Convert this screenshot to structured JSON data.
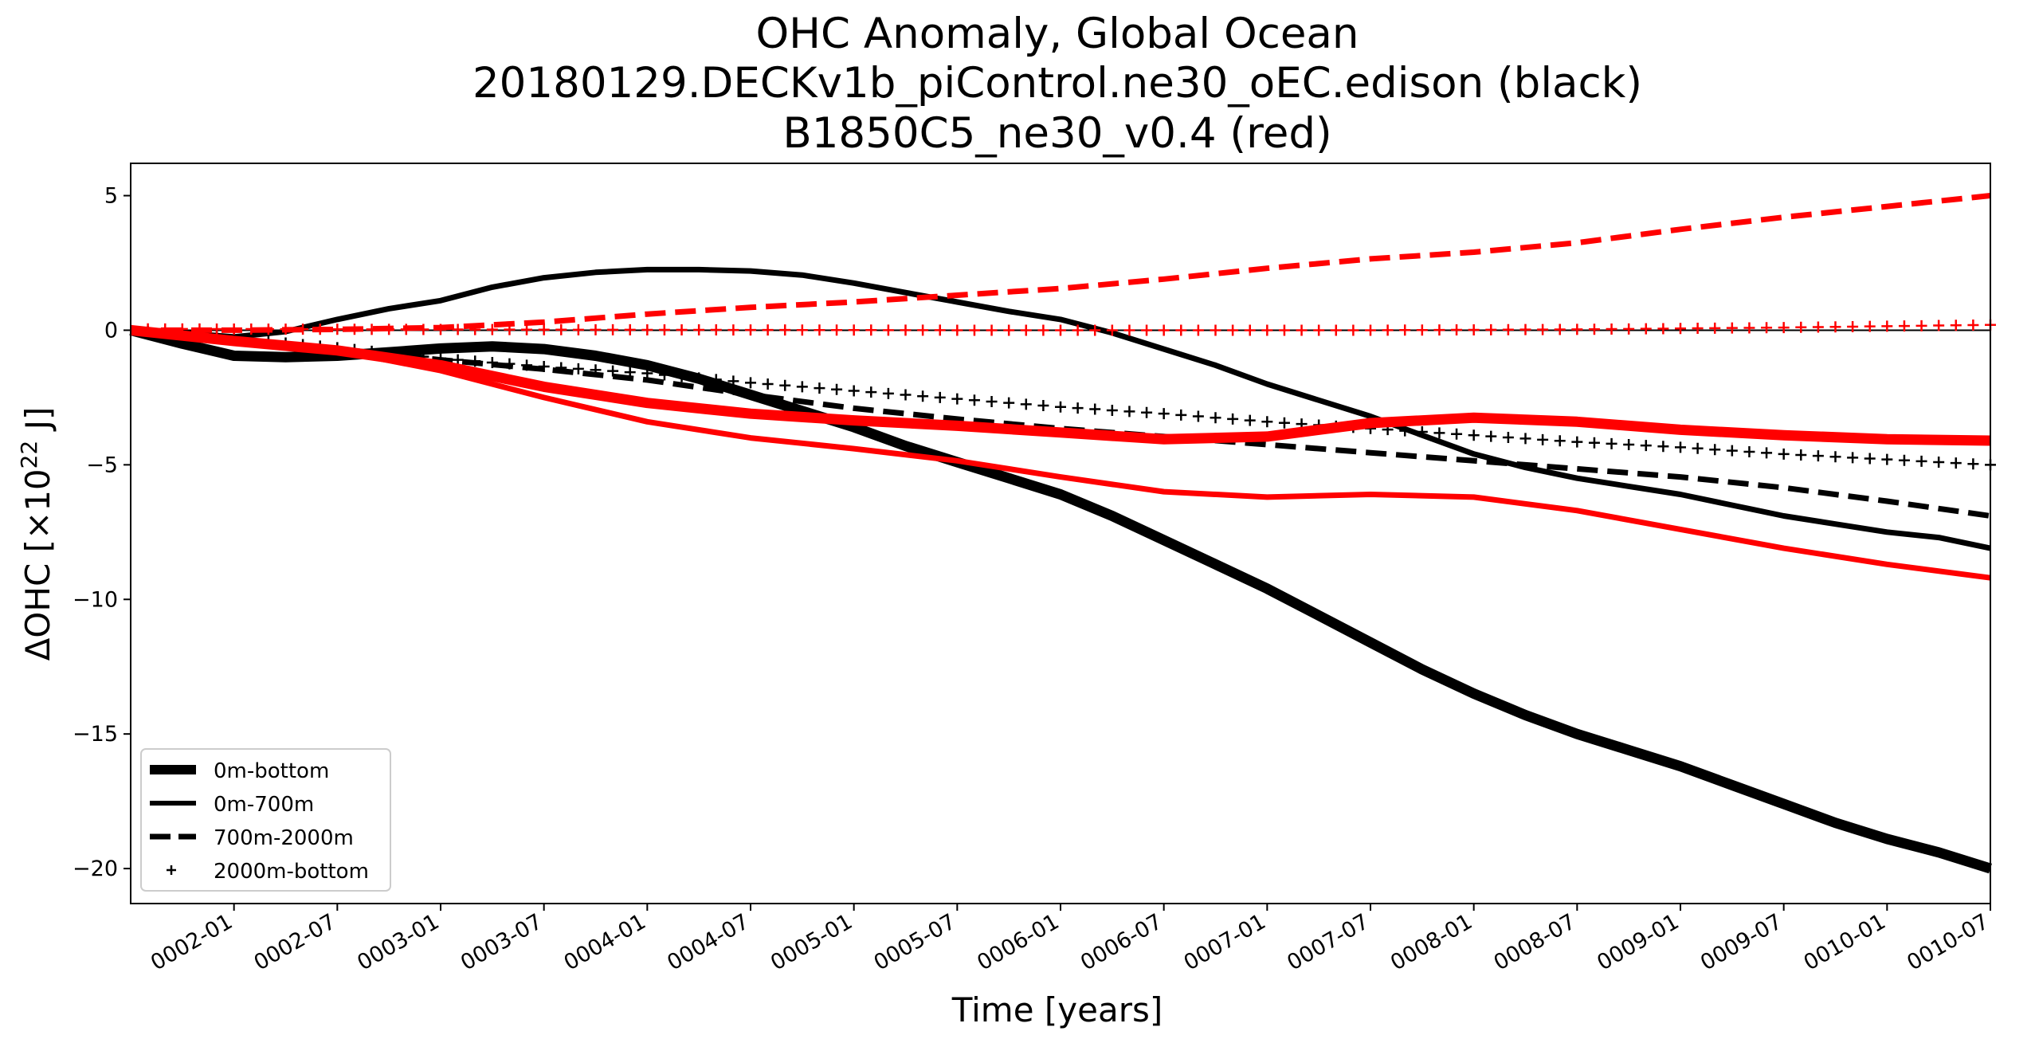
{
  "chart_data": {
    "type": "line",
    "title": [
      "OHC Anomaly, Global Ocean",
      "20180129.DECKv1b_piControl.ne30_oEC.edison (black)",
      "B1850C5_ne30_v0.4 (red)"
    ],
    "xlabel": "Time [years]",
    "ylabel_main": "ΔOHC [×10",
    "ylabel_sup": "22",
    "ylabel_tail": " J]",
    "x_ticks": [
      "0002-01",
      "0002-07",
      "0003-01",
      "0003-07",
      "0004-01",
      "0004-07",
      "0005-01",
      "0005-07",
      "0006-01",
      "0006-07",
      "0007-01",
      "0007-07",
      "0008-01",
      "0008-07",
      "0009-01",
      "0009-07",
      "0010-01",
      "0010-07"
    ],
    "xlim": [
      "0001-07",
      "0010-07"
    ],
    "y_ticks": [
      5,
      0,
      -5,
      -10,
      -15,
      -20
    ],
    "y_tick_labels": [
      "5",
      "0",
      "−5",
      "−10",
      "−15",
      "−20"
    ],
    "ylim": [
      -21.3,
      6.2
    ],
    "zero_line": 0,
    "colors": {
      "black_run": "#000000",
      "red_run": "#ff0000"
    },
    "legend": {
      "position": "lower-left",
      "entries": [
        {
          "label": "0m-bottom",
          "style": "thick-solid"
        },
        {
          "label": "0m-700m",
          "style": "solid"
        },
        {
          "label": "700m-2000m",
          "style": "dashed"
        },
        {
          "label": "2000m-bottom",
          "style": "plus-markers"
        }
      ]
    },
    "series": [
      {
        "color": "#000000",
        "style": "thick-solid",
        "points": [
          [
            "0001-07",
            0
          ],
          [
            "0001-10",
            -0.5
          ],
          [
            "0002-01",
            -0.95
          ],
          [
            "0002-04",
            -1.0
          ],
          [
            "0002-07",
            -0.95
          ],
          [
            "0002-10",
            -0.82
          ],
          [
            "0003-01",
            -0.68
          ],
          [
            "0003-04",
            -0.6
          ],
          [
            "0003-07",
            -0.7
          ],
          [
            "0003-10",
            -0.95
          ],
          [
            "0004-01",
            -1.3
          ],
          [
            "0004-04",
            -1.8
          ],
          [
            "0004-07",
            -2.4
          ],
          [
            "0004-10",
            -3.0
          ],
          [
            "0005-01",
            -3.6
          ],
          [
            "0005-04",
            -4.3
          ],
          [
            "0005-07",
            -4.9
          ],
          [
            "0005-10",
            -5.5
          ],
          [
            "0006-01",
            -6.1
          ],
          [
            "0006-04",
            -6.9
          ],
          [
            "0006-07",
            -7.8
          ],
          [
            "0006-10",
            -8.7
          ],
          [
            "0007-01",
            -9.6
          ],
          [
            "0007-04",
            -10.6
          ],
          [
            "0007-07",
            -11.6
          ],
          [
            "0007-10",
            -12.6
          ],
          [
            "0008-01",
            -13.5
          ],
          [
            "0008-04",
            -14.3
          ],
          [
            "0008-07",
            -15.0
          ],
          [
            "0008-10",
            -15.6
          ],
          [
            "0009-01",
            -16.2
          ],
          [
            "0009-04",
            -16.9
          ],
          [
            "0009-07",
            -17.6
          ],
          [
            "0009-10",
            -18.3
          ],
          [
            "0010-01",
            -18.9
          ],
          [
            "0010-04",
            -19.4
          ],
          [
            "0010-07",
            -20.0
          ]
        ]
      },
      {
        "color": "#000000",
        "style": "solid",
        "points": [
          [
            "0001-07",
            0
          ],
          [
            "0001-10",
            -0.1
          ],
          [
            "0002-01",
            -0.25
          ],
          [
            "0002-04",
            -0.05
          ],
          [
            "0002-07",
            0.4
          ],
          [
            "0002-10",
            0.8
          ],
          [
            "0003-01",
            1.1
          ],
          [
            "0003-04",
            1.6
          ],
          [
            "0003-07",
            1.95
          ],
          [
            "0003-10",
            2.15
          ],
          [
            "0004-01",
            2.25
          ],
          [
            "0004-04",
            2.25
          ],
          [
            "0004-07",
            2.2
          ],
          [
            "0004-10",
            2.05
          ],
          [
            "0005-01",
            1.75
          ],
          [
            "0005-04",
            1.4
          ],
          [
            "0005-07",
            1.05
          ],
          [
            "0005-10",
            0.7
          ],
          [
            "0006-01",
            0.4
          ],
          [
            "0006-04",
            -0.1
          ],
          [
            "0006-07",
            -0.7
          ],
          [
            "0006-10",
            -1.3
          ],
          [
            "0007-01",
            -2.0
          ],
          [
            "0007-04",
            -2.6
          ],
          [
            "0007-07",
            -3.2
          ],
          [
            "0007-10",
            -3.9
          ],
          [
            "0008-01",
            -4.6
          ],
          [
            "0008-04",
            -5.1
          ],
          [
            "0008-07",
            -5.5
          ],
          [
            "0008-10",
            -5.8
          ],
          [
            "0009-01",
            -6.1
          ],
          [
            "0009-04",
            -6.5
          ],
          [
            "0009-07",
            -6.9
          ],
          [
            "0009-10",
            -7.2
          ],
          [
            "0010-01",
            -7.5
          ],
          [
            "0010-04",
            -7.7
          ],
          [
            "0010-07",
            -8.1
          ]
        ]
      },
      {
        "color": "#000000",
        "style": "dashed",
        "points": [
          [
            "0001-07",
            0
          ],
          [
            "0002-01",
            -0.35
          ],
          [
            "0002-07",
            -0.7
          ],
          [
            "0003-01",
            -1.1
          ],
          [
            "0003-07",
            -1.45
          ],
          [
            "0004-01",
            -1.85
          ],
          [
            "0004-07",
            -2.4
          ],
          [
            "0005-01",
            -2.9
          ],
          [
            "0005-07",
            -3.3
          ],
          [
            "0006-01",
            -3.65
          ],
          [
            "0006-07",
            -3.95
          ],
          [
            "0007-01",
            -4.25
          ],
          [
            "0007-07",
            -4.55
          ],
          [
            "0008-01",
            -4.85
          ],
          [
            "0008-07",
            -5.15
          ],
          [
            "0009-01",
            -5.45
          ],
          [
            "0009-07",
            -5.85
          ],
          [
            "0010-01",
            -6.35
          ],
          [
            "0010-07",
            -6.9
          ]
        ]
      },
      {
        "color": "#000000",
        "style": "plus-markers",
        "points": [
          [
            "0001-07",
            0
          ],
          [
            "0002-01",
            -0.3
          ],
          [
            "0002-07",
            -0.65
          ],
          [
            "0003-01",
            -1.05
          ],
          [
            "0003-07",
            -1.35
          ],
          [
            "0004-01",
            -1.6
          ],
          [
            "0004-07",
            -1.95
          ],
          [
            "0005-01",
            -2.25
          ],
          [
            "0005-07",
            -2.55
          ],
          [
            "0006-01",
            -2.85
          ],
          [
            "0006-07",
            -3.1
          ],
          [
            "0007-01",
            -3.4
          ],
          [
            "0007-07",
            -3.65
          ],
          [
            "0008-01",
            -3.9
          ],
          [
            "0008-07",
            -4.15
          ],
          [
            "0009-01",
            -4.35
          ],
          [
            "0009-07",
            -4.6
          ],
          [
            "0010-01",
            -4.8
          ],
          [
            "0010-07",
            -5.0
          ]
        ]
      },
      {
        "color": "#ff0000",
        "style": "thick-solid",
        "points": [
          [
            "0001-07",
            0
          ],
          [
            "0002-01",
            -0.4
          ],
          [
            "0002-07",
            -0.75
          ],
          [
            "0003-01",
            -1.3
          ],
          [
            "0003-07",
            -2.1
          ],
          [
            "0004-01",
            -2.7
          ],
          [
            "0004-07",
            -3.1
          ],
          [
            "0005-01",
            -3.35
          ],
          [
            "0005-07",
            -3.55
          ],
          [
            "0006-01",
            -3.8
          ],
          [
            "0006-07",
            -4.05
          ],
          [
            "0007-01",
            -3.95
          ],
          [
            "0007-07",
            -3.45
          ],
          [
            "0008-01",
            -3.25
          ],
          [
            "0008-07",
            -3.4
          ],
          [
            "0009-01",
            -3.7
          ],
          [
            "0009-07",
            -3.9
          ],
          [
            "0010-01",
            -4.05
          ],
          [
            "0010-07",
            -4.1
          ]
        ]
      },
      {
        "color": "#ff0000",
        "style": "solid",
        "points": [
          [
            "0001-07",
            0
          ],
          [
            "0002-01",
            -0.4
          ],
          [
            "0002-07",
            -0.75
          ],
          [
            "0003-01",
            -1.5
          ],
          [
            "0003-07",
            -2.5
          ],
          [
            "0004-01",
            -3.4
          ],
          [
            "0004-07",
            -4.0
          ],
          [
            "0005-01",
            -4.4
          ],
          [
            "0005-07",
            -4.85
          ],
          [
            "0006-01",
            -5.45
          ],
          [
            "0006-07",
            -6.0
          ],
          [
            "0007-01",
            -6.2
          ],
          [
            "0007-07",
            -6.1
          ],
          [
            "0008-01",
            -6.2
          ],
          [
            "0008-07",
            -6.7
          ],
          [
            "0009-01",
            -7.4
          ],
          [
            "0009-07",
            -8.1
          ],
          [
            "0010-01",
            -8.7
          ],
          [
            "0010-07",
            -9.2
          ]
        ]
      },
      {
        "color": "#ff0000",
        "style": "dashed",
        "points": [
          [
            "0001-07",
            0
          ],
          [
            "0002-01",
            0.0
          ],
          [
            "0002-07",
            0.03
          ],
          [
            "0003-01",
            0.1
          ],
          [
            "0003-07",
            0.3
          ],
          [
            "0004-01",
            0.6
          ],
          [
            "0004-07",
            0.85
          ],
          [
            "0005-01",
            1.05
          ],
          [
            "0005-07",
            1.3
          ],
          [
            "0006-01",
            1.55
          ],
          [
            "0006-07",
            1.9
          ],
          [
            "0007-01",
            2.3
          ],
          [
            "0007-07",
            2.65
          ],
          [
            "0008-01",
            2.9
          ],
          [
            "0008-07",
            3.25
          ],
          [
            "0009-01",
            3.75
          ],
          [
            "0009-07",
            4.2
          ],
          [
            "0010-01",
            4.6
          ],
          [
            "0010-07",
            5.0
          ]
        ]
      },
      {
        "color": "#ff0000",
        "style": "plus-markers",
        "points": [
          [
            "0001-07",
            0.05
          ],
          [
            "0003-07",
            0.02
          ],
          [
            "0005-07",
            0.0
          ],
          [
            "0007-07",
            0.0
          ],
          [
            "0008-07",
            0.03
          ],
          [
            "0009-07",
            0.1
          ],
          [
            "0010-07",
            0.2
          ]
        ]
      }
    ]
  }
}
